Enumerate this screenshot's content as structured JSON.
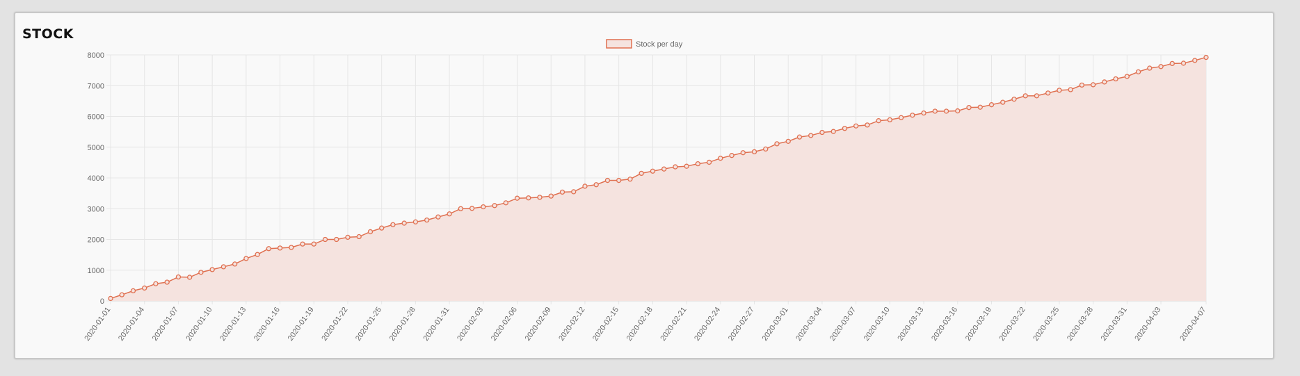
{
  "card": {
    "title": "STOCK"
  },
  "chart_data": {
    "type": "area",
    "title": "",
    "xlabel": "",
    "ylabel": "",
    "ylim": [
      0,
      8000
    ],
    "yticks": [
      0,
      1000,
      2000,
      3000,
      4000,
      5000,
      6000,
      7000,
      8000
    ],
    "grid": true,
    "legend_position": "top-center",
    "colors": {
      "line": "#e07050",
      "fill": "#f5e3df",
      "grid": "#e6e6e6"
    },
    "x": [
      "2020-01-01",
      "2020-01-02",
      "2020-01-03",
      "2020-01-04",
      "2020-01-05",
      "2020-01-06",
      "2020-01-07",
      "2020-01-08",
      "2020-01-09",
      "2020-01-10",
      "2020-01-11",
      "2020-01-12",
      "2020-01-13",
      "2020-01-14",
      "2020-01-15",
      "2020-01-16",
      "2020-01-17",
      "2020-01-18",
      "2020-01-19",
      "2020-01-20",
      "2020-01-21",
      "2020-01-22",
      "2020-01-23",
      "2020-01-24",
      "2020-01-25",
      "2020-01-26",
      "2020-01-27",
      "2020-01-28",
      "2020-01-29",
      "2020-01-30",
      "2020-01-31",
      "2020-02-01",
      "2020-02-02",
      "2020-02-03",
      "2020-02-04",
      "2020-02-05",
      "2020-02-06",
      "2020-02-07",
      "2020-02-08",
      "2020-02-09",
      "2020-02-10",
      "2020-02-11",
      "2020-02-12",
      "2020-02-13",
      "2020-02-14",
      "2020-02-15",
      "2020-02-16",
      "2020-02-17",
      "2020-02-18",
      "2020-02-19",
      "2020-02-20",
      "2020-02-21",
      "2020-02-22",
      "2020-02-23",
      "2020-02-24",
      "2020-02-25",
      "2020-02-26",
      "2020-02-27",
      "2020-02-28",
      "2020-02-29",
      "2020-03-01",
      "2020-03-02",
      "2020-03-03",
      "2020-03-04",
      "2020-03-05",
      "2020-03-06",
      "2020-03-07",
      "2020-03-08",
      "2020-03-09",
      "2020-03-10",
      "2020-03-11",
      "2020-03-12",
      "2020-03-13",
      "2020-03-14",
      "2020-03-15",
      "2020-03-16",
      "2020-03-17",
      "2020-03-18",
      "2020-03-19",
      "2020-03-20",
      "2020-03-21",
      "2020-03-22",
      "2020-03-23",
      "2020-03-24",
      "2020-03-25",
      "2020-03-26",
      "2020-03-27",
      "2020-03-28",
      "2020-03-29",
      "2020-03-30",
      "2020-03-31",
      "2020-04-01",
      "2020-04-02",
      "2020-04-03",
      "2020-04-04",
      "2020-04-05",
      "2020-04-06",
      "2020-04-07"
    ],
    "xtick_labels": [
      "2020-01-01",
      "2020-01-04",
      "2020-01-07",
      "2020-01-10",
      "2020-01-13",
      "2020-01-16",
      "2020-01-19",
      "2020-01-22",
      "2020-01-25",
      "2020-01-28",
      "2020-01-31",
      "2020-02-03",
      "2020-02-06",
      "2020-02-09",
      "2020-02-12",
      "2020-02-15",
      "2020-02-18",
      "2020-02-21",
      "2020-02-24",
      "2020-02-27",
      "2020-03-01",
      "2020-03-04",
      "2020-03-07",
      "2020-03-10",
      "2020-03-13",
      "2020-03-16",
      "2020-03-19",
      "2020-03-22",
      "2020-03-25",
      "2020-03-28",
      "2020-03-31",
      "2020-04-03",
      "2020-04-07"
    ],
    "series": [
      {
        "name": "Stock per day",
        "values": [
          80,
          200,
          330,
          420,
          560,
          610,
          780,
          770,
          930,
          1020,
          1110,
          1200,
          1380,
          1510,
          1700,
          1720,
          1740,
          1850,
          1850,
          2000,
          2000,
          2070,
          2090,
          2250,
          2370,
          2480,
          2530,
          2570,
          2630,
          2730,
          2830,
          3000,
          3010,
          3060,
          3100,
          3190,
          3340,
          3350,
          3370,
          3410,
          3540,
          3550,
          3730,
          3780,
          3920,
          3920,
          3960,
          4150,
          4220,
          4290,
          4360,
          4380,
          4460,
          4510,
          4640,
          4730,
          4820,
          4850,
          4940,
          5110,
          5190,
          5330,
          5380,
          5480,
          5510,
          5610,
          5690,
          5720,
          5860,
          5890,
          5960,
          6040,
          6110,
          6170,
          6170,
          6180,
          6290,
          6300,
          6380,
          6460,
          6560,
          6670,
          6670,
          6760,
          6850,
          6870,
          7020,
          7030,
          7120,
          7220,
          7300,
          7450,
          7570,
          7620,
          7720,
          7730,
          7820,
          7920
        ]
      }
    ]
  }
}
